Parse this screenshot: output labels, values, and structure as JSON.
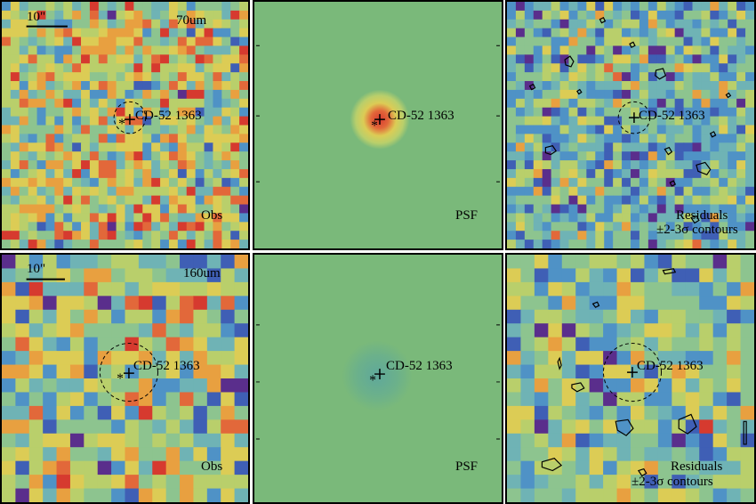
{
  "panels": {
    "p70_obs": {
      "band": "70um",
      "scale": "10\"",
      "source": "CD-52 1363",
      "caption": "Obs"
    },
    "p70_psf": {
      "source": "CD-52 1363",
      "caption": "PSF"
    },
    "p70_res": {
      "source": "CD-52 1363",
      "caption1": "Residuals",
      "caption2": "±2-3σ contours"
    },
    "p160_obs": {
      "band": "160um",
      "scale": "10\"",
      "source": "CD-52 1363",
      "caption": "Obs"
    },
    "p160_psf": {
      "source": "CD-52 1363",
      "caption": "PSF"
    },
    "p160_res": {
      "source": "CD-52 1363",
      "caption1": "Residuals",
      "caption2": "±2-3σ contours"
    }
  },
  "palette": [
    "#5a2e8c",
    "#3f5fb5",
    "#4f92c6",
    "#6fb3b5",
    "#8dc48f",
    "#b9cf6b",
    "#dccc55",
    "#e8a040",
    "#e2683a",
    "#d63a2f"
  ],
  "psf_color": "#7ab97a"
}
